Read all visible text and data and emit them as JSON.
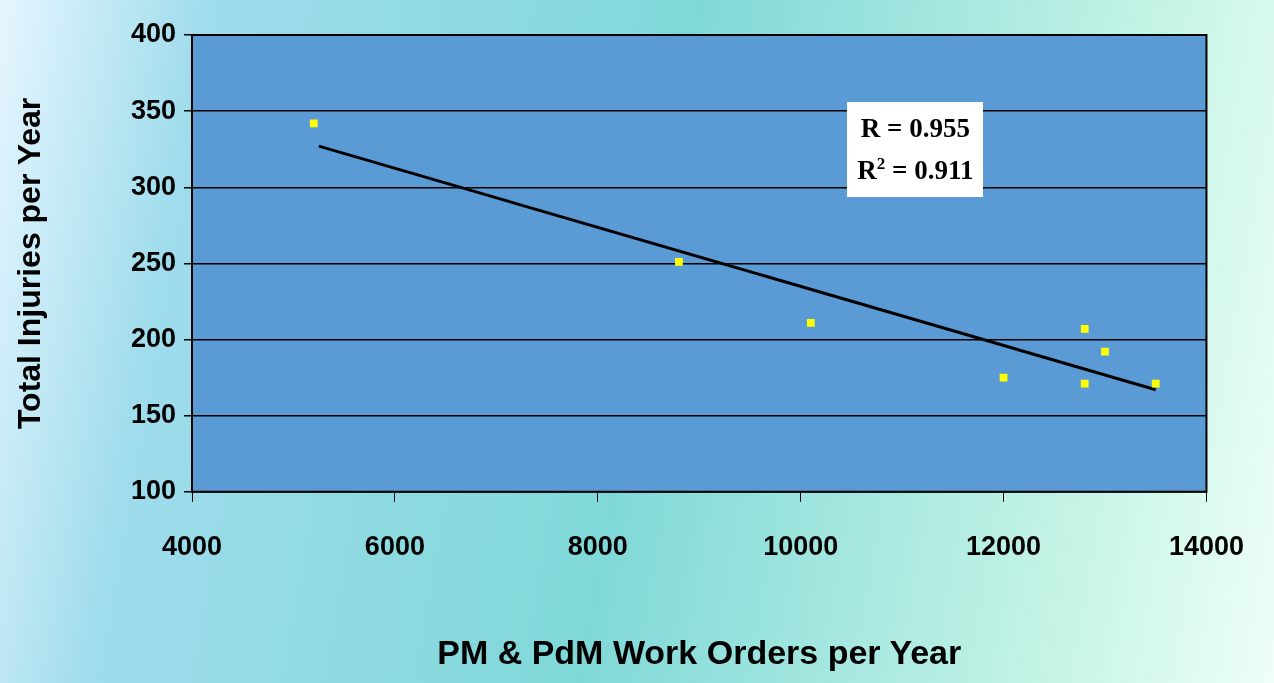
{
  "chart_data": {
    "type": "scatter",
    "xlabel": "PM & PdM Work Orders per Year",
    "ylabel": "Total Injuries per Year",
    "annotations": [
      "R = 0.955",
      "R$^{2}$ = 0.911"
    ],
    "series": [
      {
        "color": "#ffff00",
        "x": [
          5200,
          8800,
          10100,
          12000,
          12800,
          12800,
          13000,
          13500
        ],
        "values": [
          342,
          251,
          211,
          175,
          207,
          171,
          192,
          171
        ]
      },
      {
        "type": "line",
        "marker": "none",
        "color": "#000000",
        "x": [
          5250,
          13500
        ],
        "values": [
          327,
          167
        ]
      }
    ],
    "xlim": [
      4000,
      14000
    ],
    "xticks": [
      4000,
      6000,
      8000,
      10000,
      12000,
      14000
    ],
    "ylim": [
      100,
      400
    ],
    "yticks": [
      100,
      150,
      200,
      250,
      300,
      350,
      400
    ],
    "grid": "y",
    "legend": false,
    "marker": "square"
  }
}
